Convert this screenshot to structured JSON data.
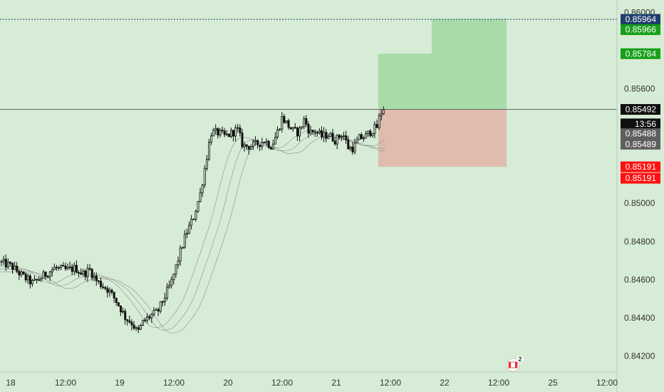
{
  "chart_data": {
    "type": "candlestick",
    "xlim": [
      0,
      932
    ],
    "ylim": [
      0.841155,
      0.860655
    ],
    "x_ticks": [
      {
        "label": "18",
        "x": 15
      },
      {
        "label": "12:00",
        "x": 92
      },
      {
        "label": "19",
        "x": 168
      },
      {
        "label": "12:00",
        "x": 244
      },
      {
        "label": "20",
        "x": 320
      },
      {
        "label": "12:00",
        "x": 396
      },
      {
        "label": "21",
        "x": 472
      },
      {
        "label": "12:00",
        "x": 548
      },
      {
        "label": "22",
        "x": 624
      },
      {
        "label": "12:00",
        "x": 700
      },
      {
        "label": "25",
        "x": 776
      },
      {
        "label": "12:00",
        "x": 852
      }
    ],
    "y_ticks": [
      {
        "label": "0.84200",
        "value": 0.842
      },
      {
        "label": "0.84400",
        "value": 0.844
      },
      {
        "label": "0.84600",
        "value": 0.846
      },
      {
        "label": "0.84800",
        "value": 0.848
      },
      {
        "label": "0.85000",
        "value": 0.85
      },
      {
        "label": "0.85600",
        "value": 0.856
      }
    ],
    "price_series": [
      [
        0,
        0.8469
      ],
      [
        15,
        0.8467
      ],
      [
        30,
        0.8462
      ],
      [
        45,
        0.8458
      ],
      [
        60,
        0.8462
      ],
      [
        75,
        0.8466
      ],
      [
        92,
        0.8465
      ],
      [
        105,
        0.8466
      ],
      [
        115,
        0.8463
      ],
      [
        125,
        0.8465
      ],
      [
        135,
        0.8459
      ],
      [
        150,
        0.8455
      ],
      [
        160,
        0.845
      ],
      [
        168,
        0.8445
      ],
      [
        175,
        0.844
      ],
      [
        185,
        0.8437
      ],
      [
        192,
        0.8432
      ],
      [
        200,
        0.8438
      ],
      [
        210,
        0.8441
      ],
      [
        220,
        0.8443
      ],
      [
        230,
        0.8451
      ],
      [
        240,
        0.8459
      ],
      [
        250,
        0.8472
      ],
      [
        260,
        0.8484
      ],
      [
        270,
        0.8492
      ],
      [
        280,
        0.8505
      ],
      [
        288,
        0.8522
      ],
      [
        295,
        0.8537
      ],
      [
        305,
        0.8537
      ],
      [
        315,
        0.8535
      ],
      [
        325,
        0.8537
      ],
      [
        332,
        0.8539
      ],
      [
        340,
        0.853
      ],
      [
        350,
        0.853
      ],
      [
        360,
        0.8531
      ],
      [
        370,
        0.8533
      ],
      [
        380,
        0.853
      ],
      [
        388,
        0.8537
      ],
      [
        395,
        0.8545
      ],
      [
        403,
        0.8541
      ],
      [
        410,
        0.8538
      ],
      [
        418,
        0.8537
      ],
      [
        426,
        0.8544
      ],
      [
        434,
        0.8537
      ],
      [
        442,
        0.8538
      ],
      [
        450,
        0.8535
      ],
      [
        460,
        0.8536
      ],
      [
        470,
        0.8533
      ],
      [
        480,
        0.8537
      ],
      [
        488,
        0.8529
      ],
      [
        495,
        0.8529
      ],
      [
        503,
        0.8534
      ],
      [
        512,
        0.8535
      ],
      [
        520,
        0.8538
      ],
      [
        528,
        0.854
      ],
      [
        532,
        0.8546
      ],
      [
        537,
        0.855
      ],
      [
        541,
        0.8549
      ]
    ],
    "ma_lines": [
      {
        "offset": 0.0006,
        "color": "#8c8c8c"
      },
      {
        "offset": 0.001,
        "color": "#8c8c8c"
      },
      {
        "offset": 0.0014,
        "color": "#8c8c8c"
      }
    ],
    "last_price": 0.85492,
    "dotted_level": 0.85964,
    "long_position": {
      "x_start": 531,
      "x_step": 606,
      "x_end": 711,
      "entry": 0.85492,
      "target_1": 0.85784,
      "target_2": 0.85966,
      "stop": 0.85191,
      "profit_color": "#a9dba9",
      "loss_color": "#dfbcae"
    },
    "price_tags": [
      {
        "label": "0.85964",
        "value": 0.85964,
        "bg": "#1f3e6c",
        "fg": "#ffffff"
      },
      {
        "label": "0.85966",
        "value": 0.85966,
        "bg": "#16a019",
        "fg": "#ffffff",
        "shift": 15
      },
      {
        "label": "0.85784",
        "value": 0.85784,
        "bg": "#16a019",
        "fg": "#ffffff"
      },
      {
        "label": "0.85492",
        "value": 0.85492,
        "bg": "#101010",
        "fg": "#ffffff"
      },
      {
        "label": "13:56",
        "value": 0.85476,
        "bg": "#101010",
        "fg": "#ffffff",
        "shift": 16
      },
      {
        "label": "0.85488",
        "value": 0.85488,
        "bg": "#5f5f5f",
        "fg": "#ffffff",
        "shift": 33
      },
      {
        "label": "0.85489",
        "value": 0.85489,
        "bg": "#5f5f5f",
        "fg": "#ffffff",
        "shift": 48
      },
      {
        "label": "0.85191",
        "value": 0.85191,
        "bg": "#ff1010",
        "fg": "#ffffff"
      },
      {
        "label": "0.85191",
        "value": 0.85191,
        "bg": "#ff1010",
        "fg": "#ffffff",
        "shift": 16
      }
    ],
    "events_badge": {
      "x": 720,
      "count": "2"
    },
    "colors": {
      "background": "#d6ecd6",
      "candle": "#111111",
      "axis_text": "#333333",
      "grid_line": "#646464"
    }
  }
}
